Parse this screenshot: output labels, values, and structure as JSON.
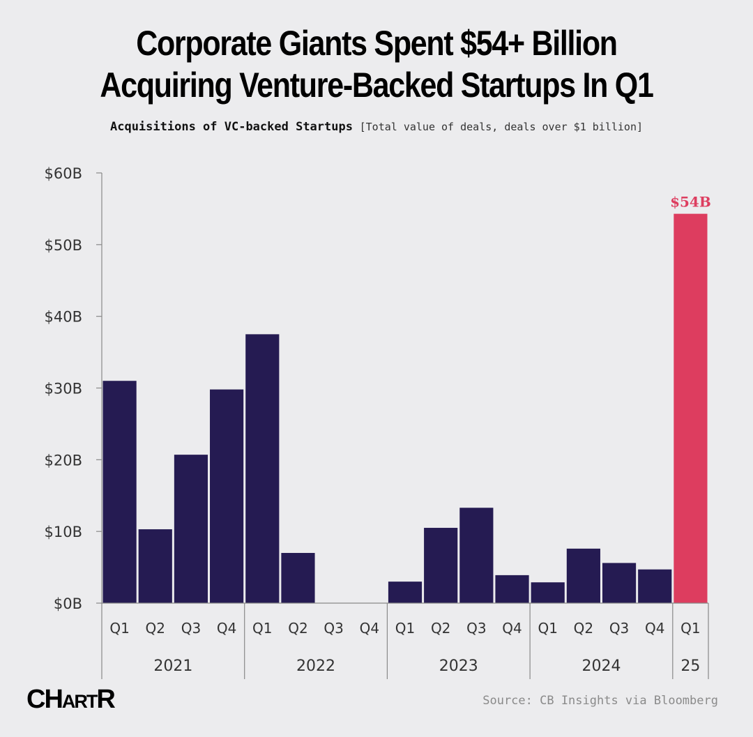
{
  "header": {
    "title_line1": "Corporate Giants Spent $54+ Billion",
    "title_line2": "Acquiring Venture-Backed Startups In Q1",
    "subtitle_strong": "Acquisitions of VC-backed Startups",
    "subtitle_note": "[Total value of deals, deals over $1 billion]"
  },
  "footer": {
    "logo_text": "CHARTR",
    "source": "Source: CB Insights via Bloomberg"
  },
  "colors": {
    "bar": "#251b52",
    "highlight": "#dd3d5f",
    "axis": "#888888",
    "text": "#333333"
  },
  "chart_data": {
    "type": "bar",
    "categories": [
      "Q1",
      "Q2",
      "Q3",
      "Q4",
      "Q1",
      "Q2",
      "Q3",
      "Q4",
      "Q1",
      "Q2",
      "Q3",
      "Q4",
      "Q1",
      "Q2",
      "Q3",
      "Q4",
      "Q1"
    ],
    "groups": [
      {
        "label": "2021",
        "count": 4
      },
      {
        "label": "2022",
        "count": 4
      },
      {
        "label": "2023",
        "count": 4
      },
      {
        "label": "2024",
        "count": 4
      },
      {
        "label": "25",
        "count": 1
      }
    ],
    "values": [
      31,
      10.3,
      20.7,
      29.8,
      37.5,
      7,
      0,
      0,
      3,
      10.5,
      13.3,
      3.9,
      2.9,
      7.6,
      5.6,
      4.7,
      54.3
    ],
    "highlight_index": 16,
    "annotations": [
      {
        "index": 16,
        "text": "$54B"
      }
    ],
    "ylim": [
      0,
      60
    ],
    "yticks": [
      0,
      10,
      20,
      30,
      40,
      50,
      60
    ],
    "ytick_labels": [
      "$0B",
      "$10B",
      "$20B",
      "$30B",
      "$40B",
      "$50B",
      "$60B"
    ],
    "grid": false,
    "title": "Acquisitions of VC-backed Startups",
    "xlabel": "",
    "ylabel": ""
  }
}
